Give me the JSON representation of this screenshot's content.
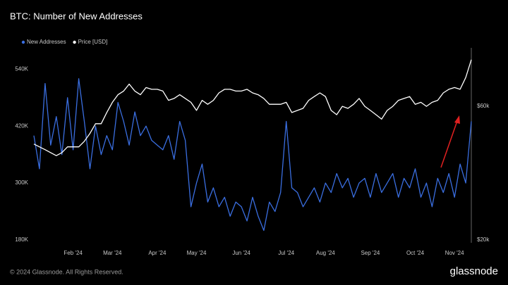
{
  "chart_data": {
    "type": "line",
    "title": "BTC: Number of New Addresses",
    "footer": "© 2024 Glassnode. All Rights Reserved.",
    "brand": "glassnode",
    "categories": [
      null,
      null,
      null,
      null,
      null,
      null,
      null,
      "Feb '24",
      null,
      null,
      null,
      null,
      null,
      null,
      "Mar '24",
      null,
      null,
      null,
      null,
      null,
      null,
      null,
      "Apr '24",
      null,
      null,
      null,
      null,
      null,
      null,
      "May '24",
      null,
      null,
      null,
      null,
      null,
      null,
      null,
      "Jun '24",
      null,
      null,
      null,
      null,
      null,
      null,
      null,
      "Jul '24",
      null,
      null,
      null,
      null,
      null,
      null,
      "Aug '24",
      null,
      null,
      null,
      null,
      null,
      null,
      null,
      "Sep '24",
      null,
      null,
      null,
      null,
      null,
      null,
      null,
      "Oct '24",
      null,
      null,
      null,
      null,
      null,
      null,
      "Nov '24",
      null,
      null,
      null
    ],
    "series": [
      {
        "name": "New Addresses",
        "color": "#3a6ee0",
        "values": [
          400000,
          330000,
          510000,
          380000,
          440000,
          360000,
          480000,
          370000,
          520000,
          430000,
          330000,
          420000,
          360000,
          400000,
          370000,
          470000,
          430000,
          380000,
          450000,
          400000,
          420000,
          390000,
          380000,
          370000,
          400000,
          350000,
          430000,
          390000,
          250000,
          300000,
          340000,
          260000,
          290000,
          250000,
          270000,
          230000,
          260000,
          250000,
          220000,
          270000,
          230000,
          200000,
          260000,
          240000,
          280000,
          430000,
          290000,
          280000,
          250000,
          270000,
          290000,
          260000,
          300000,
          280000,
          320000,
          290000,
          310000,
          270000,
          300000,
          310000,
          270000,
          320000,
          280000,
          300000,
          320000,
          270000,
          310000,
          290000,
          330000,
          270000,
          300000,
          250000,
          310000,
          280000,
          320000,
          270000,
          340000,
          300000,
          430000
        ]
      },
      {
        "name": "Price [USD]",
        "color": "#ffffff",
        "axis": "y2",
        "values": [
          44000,
          43000,
          42000,
          41000,
          40000,
          41000,
          43000,
          43000,
          43000,
          45000,
          48000,
          52000,
          52000,
          57000,
          62000,
          66000,
          68000,
          72000,
          68000,
          66000,
          70000,
          69000,
          69000,
          68000,
          63000,
          64000,
          66000,
          64000,
          62000,
          58000,
          63000,
          61000,
          63000,
          67000,
          69000,
          69000,
          68000,
          68000,
          69000,
          67000,
          66000,
          64000,
          61000,
          61000,
          61000,
          62000,
          57000,
          58000,
          59000,
          63000,
          65000,
          67000,
          65000,
          58000,
          56000,
          60000,
          59000,
          61000,
          64000,
          60000,
          58000,
          56000,
          54000,
          58000,
          60000,
          63000,
          64000,
          65000,
          61000,
          62000,
          60000,
          62000,
          63000,
          67000,
          69000,
          70000,
          69000,
          76000,
          88000
        ]
      }
    ],
    "ylim": [
      180000,
      585000
    ],
    "yticks": [
      {
        "value": 180000,
        "label": "180K"
      },
      {
        "value": 300000,
        "label": "300K"
      },
      {
        "value": 420000,
        "label": "420K"
      },
      {
        "value": 540000,
        "label": "540K"
      }
    ],
    "y2lim": [
      20000,
      97000
    ],
    "y2ticks": [
      {
        "value": 20000,
        "label": "$20k"
      },
      {
        "value": 60000,
        "label": "$60k"
      }
    ],
    "y2log": true,
    "grid": false
  }
}
